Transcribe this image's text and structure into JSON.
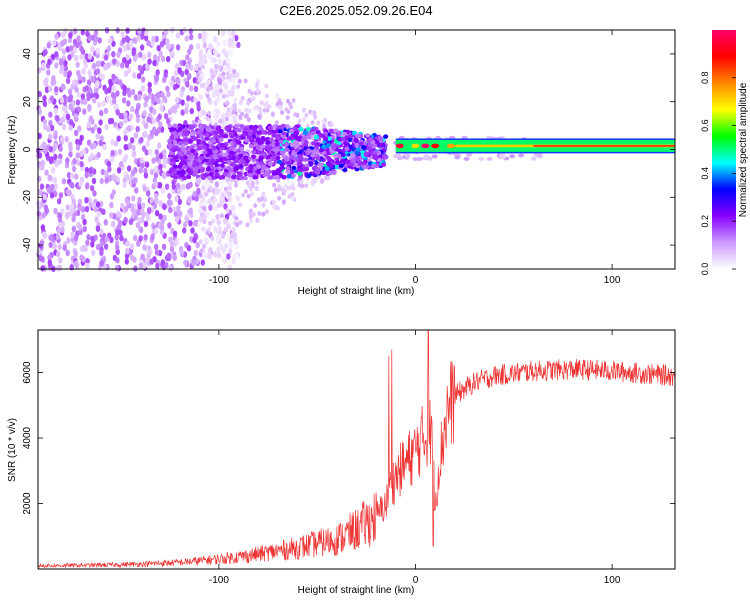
{
  "title": "C2E6.2025.052.09.26.E04",
  "chart_data": [
    {
      "type": "heatmap",
      "xlabel": "Height of straight line (km)",
      "ylabel": "Frequency (Hz)",
      "xlim": [
        -192,
        132
      ],
      "ylim": [
        -50,
        50
      ],
      "xticks": [
        -100,
        0,
        100
      ],
      "yticks": [
        -40,
        -20,
        0,
        20,
        40
      ],
      "colorbar": {
        "label": "Normalized spectral amplitude",
        "range": [
          0,
          1
        ],
        "ticks": [
          0.0,
          0.2,
          0.4,
          0.6,
          0.8
        ],
        "colors": [
          "#ffffff",
          "#cc99ff",
          "#8800ff",
          "#0000ff",
          "#00ffff",
          "#00ff00",
          "#ffff00",
          "#ff8800",
          "#ff0000",
          "#ff0066"
        ]
      },
      "features": {
        "noise_region_x": [
          -192,
          -110
        ],
        "broadband_cluster_x": [
          -125,
          -15
        ],
        "broadband_cluster_y": [
          -12,
          10
        ],
        "tone_start_x": -10,
        "tone_frequency": 1.5,
        "tone_width": [
          -1,
          4
        ]
      }
    },
    {
      "type": "line",
      "xlabel": "Height of straight line (km)",
      "ylabel": "SNR (10 * v/v)",
      "xlim": [
        -192,
        132
      ],
      "ylim": [
        0,
        7300
      ],
      "xticks": [
        -100,
        0,
        100
      ],
      "yticks": [
        2000,
        4000,
        6000
      ],
      "color": "#ee3333",
      "envelope": {
        "x": [
          -192,
          -160,
          -140,
          -120,
          -100,
          -80,
          -60,
          -40,
          -30,
          -20,
          -15,
          -12,
          -8,
          -4,
          0,
          4,
          8,
          10,
          12,
          16,
          20,
          30,
          40,
          60,
          80,
          100,
          120,
          132
        ],
        "y": [
          100,
          120,
          150,
          200,
          300,
          450,
          650,
          900,
          1200,
          1600,
          2000,
          2600,
          3000,
          3300,
          3600,
          4000,
          4200,
          2000,
          3200,
          4800,
          5300,
          5700,
          5900,
          6050,
          6100,
          6050,
          5950,
          5900
        ]
      },
      "spikes": [
        {
          "x": -13.5,
          "y": 6500
        },
        {
          "x": -12,
          "y": 6700
        },
        {
          "x": 6.5,
          "y": 7300
        },
        {
          "x": 9,
          "y": 700
        }
      ]
    }
  ]
}
